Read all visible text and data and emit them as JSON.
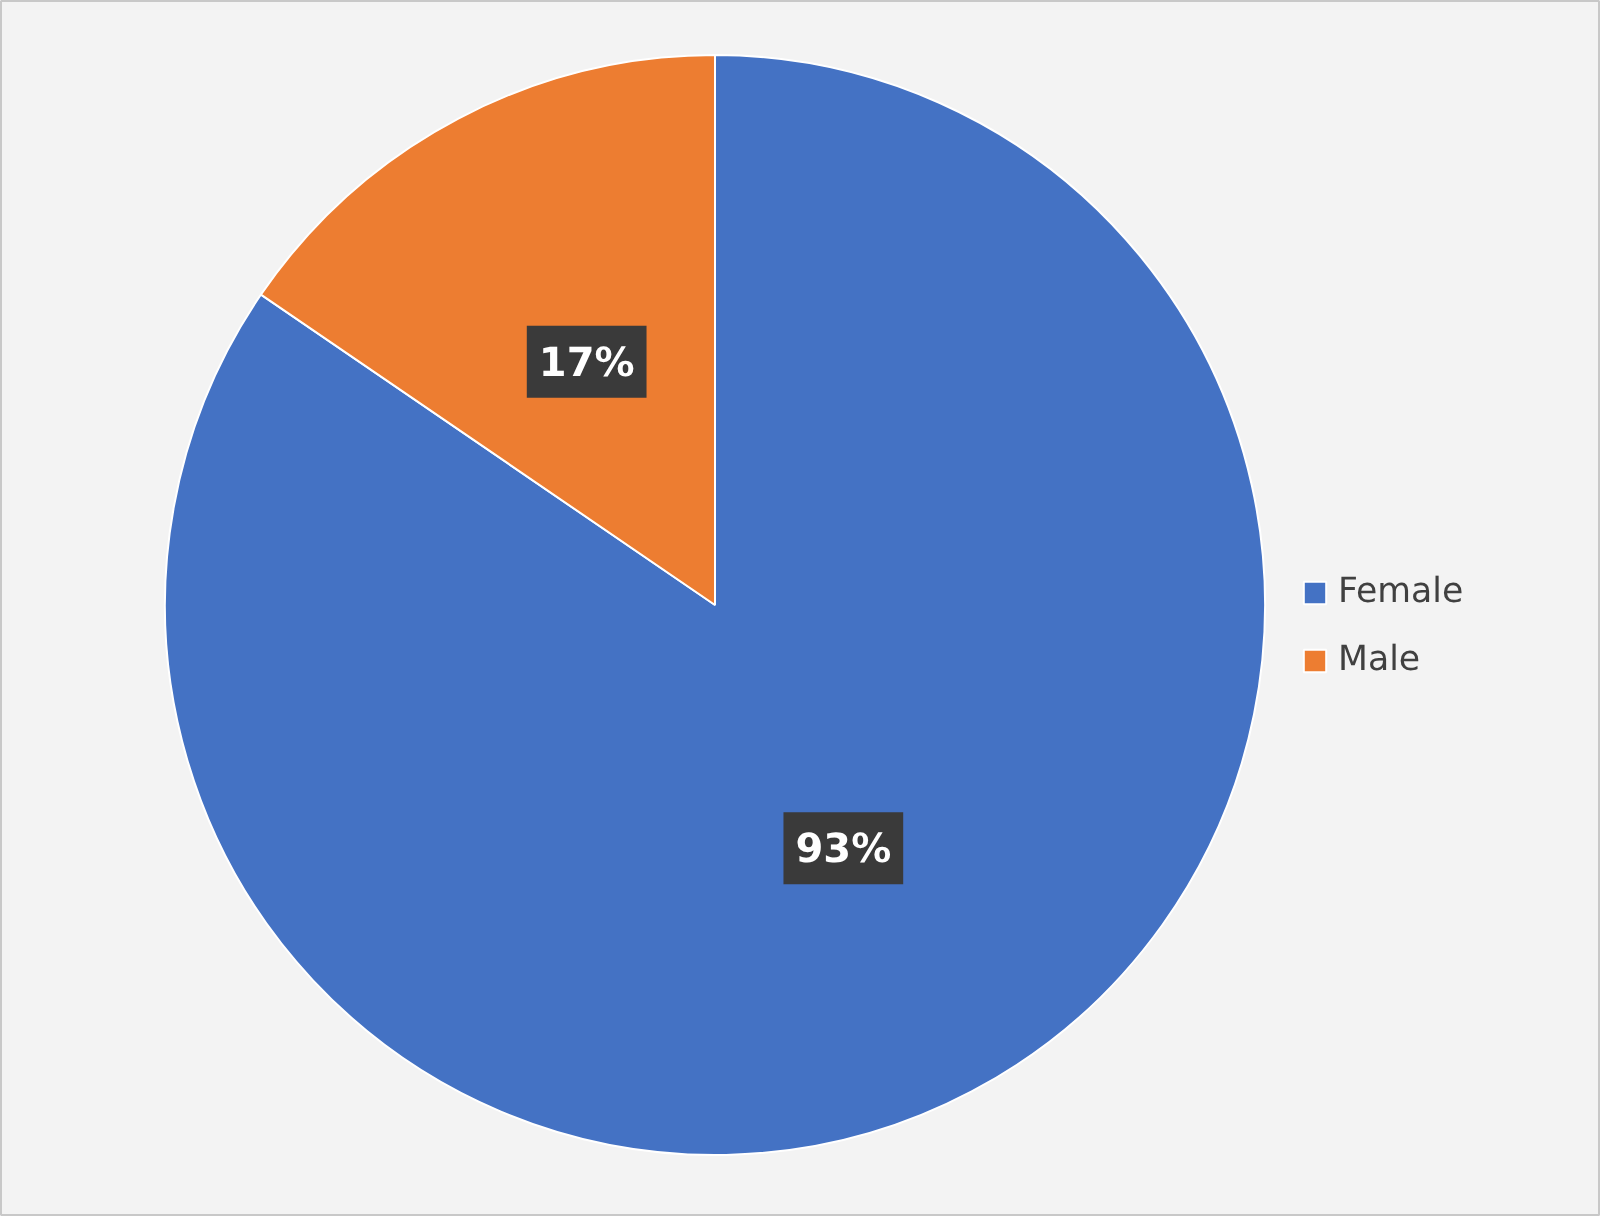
{
  "chart_data": {
    "type": "pie",
    "categories": [
      "Female",
      "Male"
    ],
    "values": [
      93,
      17
    ],
    "colors": [
      "#4472c4",
      "#ed7d31"
    ],
    "value_labels": [
      "93%",
      "17%"
    ],
    "legend": "right"
  }
}
